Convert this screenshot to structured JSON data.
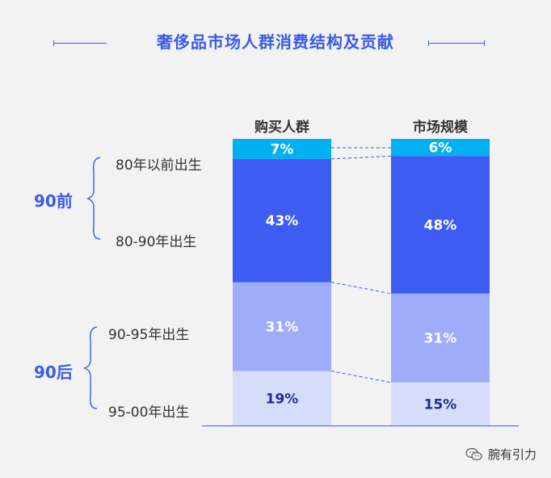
{
  "title": "奢侈品市场人群消费结构及贡献",
  "watermark": "腕有引力",
  "colors": {
    "accent": "#3b5be8",
    "seg_top": "#00b0f0",
    "seg_2": "#3d5cf2",
    "seg_3": "#9eacf9",
    "seg_4": "#d6ddfb",
    "text_dark_label": "#1f2f8a"
  },
  "groups": [
    {
      "label": "90前",
      "members": [
        "80年以前出生",
        "80-90年出生"
      ]
    },
    {
      "label": "90后",
      "members": [
        "90-95年出生",
        "95-00年出生"
      ]
    }
  ],
  "chart_data": {
    "type": "bar",
    "stacked": true,
    "normalized_percent": true,
    "categories": [
      "购买人群",
      "市场规模"
    ],
    "segments": [
      "80年以前出生",
      "80-90年出生",
      "90-95年出生",
      "95-00年出生"
    ],
    "series": [
      {
        "name": "80年以前出生",
        "values": [
          7,
          6
        ],
        "labels": [
          "7%",
          "6%"
        ]
      },
      {
        "name": "80-90年出生",
        "values": [
          43,
          48
        ],
        "labels": [
          "43%",
          "48%"
        ]
      },
      {
        "name": "90-95年出生",
        "values": [
          31,
          31
        ],
        "labels": [
          "31%",
          "31%"
        ]
      },
      {
        "name": "95-00年出生",
        "values": [
          19,
          15
        ],
        "labels": [
          "19%",
          "15%"
        ]
      }
    ],
    "ylim": [
      0,
      100
    ],
    "grid": false,
    "legend": "none"
  }
}
